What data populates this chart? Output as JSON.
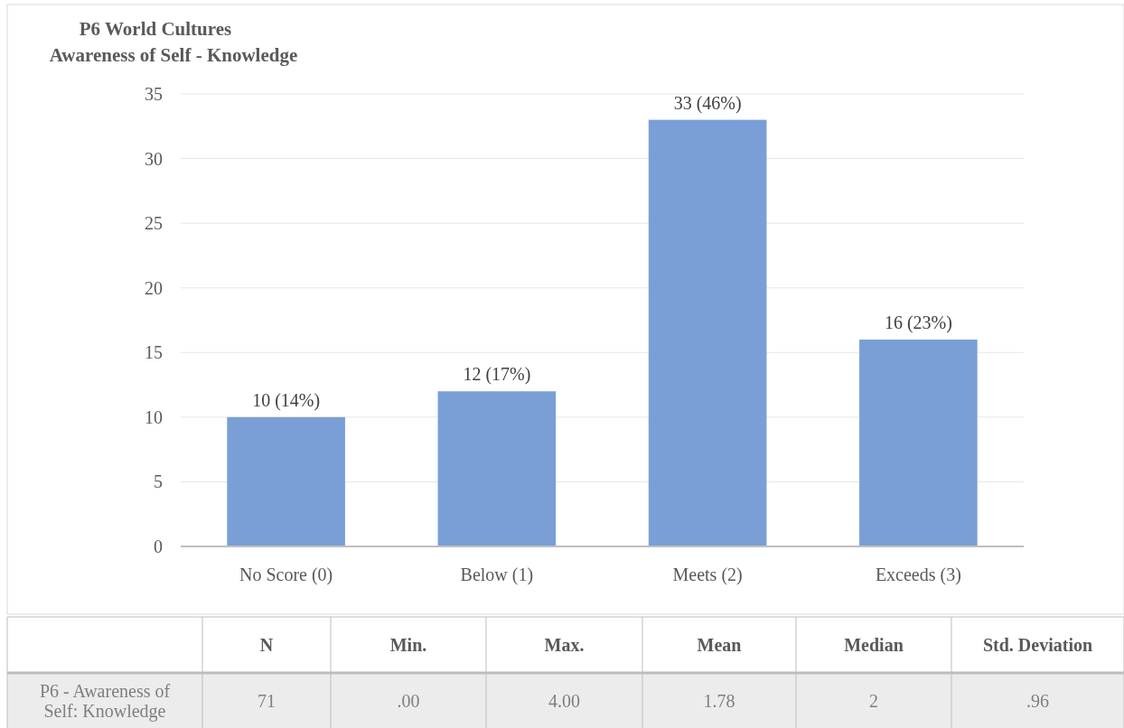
{
  "chart_data": [
    {
      "type": "bar",
      "title": "P6 World Cultures",
      "subtitle": "Awareness of Self - Knowledge",
      "categories": [
        "No Score (0)",
        "Below (1)",
        "Meets (2)",
        "Exceeds (3)"
      ],
      "values": [
        10,
        12,
        33,
        16
      ],
      "color": "#7a9fd6",
      "value_labels": [
        "10 (14%)",
        "12 (17%)",
        "33 (46%)",
        "16 (23%)"
      ],
      "ylim": [
        0,
        35
      ],
      "yticks": [
        0,
        5,
        10,
        15,
        20,
        25,
        30,
        35
      ],
      "grid": "y"
    },
    {
      "type": "other",
      "annotations": [
        "N",
        "Min.",
        "Max.",
        "Mean",
        "Median",
        "Std. Deviation",
        "P6 - Awareness of Self: Knowledge",
        "71",
        ".00",
        "4.00",
        "1.78",
        "2",
        ".96"
      ]
    }
  ]
}
